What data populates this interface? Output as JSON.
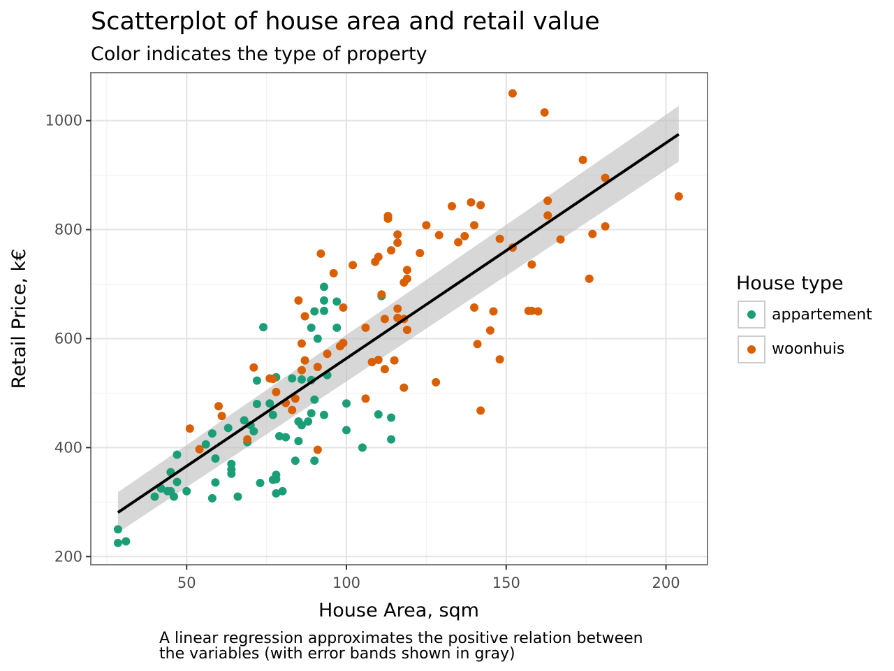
{
  "chart_data": {
    "type": "scatter",
    "title": "Scatterplot of house area and retail value",
    "subtitle": "Color indicates the type of property",
    "xlabel": "House Area, sqm",
    "ylabel": "Retail Price, k€",
    "caption": [
      "A linear regression approximates the positive relation between",
      "the variables (with error bands shown in gray)"
    ],
    "xlim": [
      20,
      213
    ],
    "ylim": [
      185,
      1088
    ],
    "x_ticks": [
      50,
      100,
      150,
      200
    ],
    "y_ticks": [
      200,
      400,
      600,
      800,
      1000
    ],
    "grid": true,
    "legend": {
      "title": "House type",
      "position": "right"
    },
    "colors": {
      "appartement": "#1b9e77",
      "woonhuis": "#d95f02",
      "regression": "#000000",
      "band": "#bebebe"
    },
    "regression": {
      "x": [
        28.5,
        204
      ],
      "y": [
        281,
        975
      ],
      "band_lower": [
        244,
        925
      ],
      "band_upper": [
        318,
        1027
      ]
    },
    "series": [
      {
        "name": "appartement",
        "points": [
          [
            28.5,
            250
          ],
          [
            28.5,
            225
          ],
          [
            31,
            228
          ],
          [
            40,
            310
          ],
          [
            42,
            325
          ],
          [
            44,
            320
          ],
          [
            45,
            320
          ],
          [
            45,
            355
          ],
          [
            46,
            310
          ],
          [
            47,
            387
          ],
          [
            47,
            337
          ],
          [
            50,
            320
          ],
          [
            56,
            406
          ],
          [
            58,
            426
          ],
          [
            58,
            307
          ],
          [
            59,
            380
          ],
          [
            59,
            336
          ],
          [
            63,
            436
          ],
          [
            64,
            370
          ],
          [
            64,
            360
          ],
          [
            64,
            352
          ],
          [
            66,
            310
          ],
          [
            68,
            450
          ],
          [
            69,
            410
          ],
          [
            70,
            441
          ],
          [
            71,
            430
          ],
          [
            72,
            480
          ],
          [
            72,
            523
          ],
          [
            73,
            335
          ],
          [
            74,
            621
          ],
          [
            76,
            481
          ],
          [
            77,
            341
          ],
          [
            77,
            460
          ],
          [
            78,
            529
          ],
          [
            78,
            350
          ],
          [
            78,
            342
          ],
          [
            78,
            316
          ],
          [
            79,
            421
          ],
          [
            80,
            320
          ],
          [
            81,
            419
          ],
          [
            83,
            527
          ],
          [
            84,
            376
          ],
          [
            85,
            412
          ],
          [
            85,
            448
          ],
          [
            86,
            441
          ],
          [
            86,
            525
          ],
          [
            88,
            448
          ],
          [
            89,
            524
          ],
          [
            89,
            620
          ],
          [
            89,
            463
          ],
          [
            90,
            376
          ],
          [
            90,
            488
          ],
          [
            90,
            650
          ],
          [
            91,
            600
          ],
          [
            93,
            460
          ],
          [
            93,
            651
          ],
          [
            93,
            670
          ],
          [
            93,
            695
          ],
          [
            94,
            533
          ],
          [
            97,
            620
          ],
          [
            97,
            668
          ],
          [
            100,
            432
          ],
          [
            100,
            481
          ],
          [
            105,
            400
          ],
          [
            110,
            461
          ],
          [
            111,
            678
          ],
          [
            114,
            455
          ],
          [
            114,
            415
          ]
        ]
      },
      {
        "name": "woonhuis",
        "points": [
          [
            51,
            435
          ],
          [
            54,
            397
          ],
          [
            60,
            476
          ],
          [
            61,
            458
          ],
          [
            69,
            415
          ],
          [
            71,
            547
          ],
          [
            76,
            527
          ],
          [
            77,
            526
          ],
          [
            78,
            502
          ],
          [
            81,
            482
          ],
          [
            83,
            469
          ],
          [
            84,
            490
          ],
          [
            85,
            670
          ],
          [
            86,
            542
          ],
          [
            86,
            591
          ],
          [
            87,
            560
          ],
          [
            87,
            641
          ],
          [
            91,
            396
          ],
          [
            91,
            548
          ],
          [
            92,
            756
          ],
          [
            94,
            572
          ],
          [
            96,
            720
          ],
          [
            98,
            586
          ],
          [
            99,
            592
          ],
          [
            99,
            657
          ],
          [
            102,
            735
          ],
          [
            106,
            620
          ],
          [
            106,
            490
          ],
          [
            108,
            557
          ],
          [
            109,
            741
          ],
          [
            110,
            750
          ],
          [
            110,
            561
          ],
          [
            111,
            681
          ],
          [
            112,
            636
          ],
          [
            112,
            544
          ],
          [
            113,
            825
          ],
          [
            113,
            820
          ],
          [
            114,
            762
          ],
          [
            115,
            560
          ],
          [
            116,
            655
          ],
          [
            116,
            776
          ],
          [
            116,
            791
          ],
          [
            116,
            638
          ],
          [
            118,
            510
          ],
          [
            118,
            703
          ],
          [
            118,
            636
          ],
          [
            119,
            616
          ],
          [
            119,
            710
          ],
          [
            119,
            726
          ],
          [
            123,
            757
          ],
          [
            125,
            808
          ],
          [
            128,
            520
          ],
          [
            129,
            790
          ],
          [
            133,
            843
          ],
          [
            135,
            777
          ],
          [
            137,
            788
          ],
          [
            139,
            850
          ],
          [
            140,
            808
          ],
          [
            140,
            657
          ],
          [
            141,
            590
          ],
          [
            142,
            468
          ],
          [
            142,
            845
          ],
          [
            145,
            615
          ],
          [
            146,
            650
          ],
          [
            148,
            562
          ],
          [
            148,
            783
          ],
          [
            152,
            1050
          ],
          [
            152,
            767
          ],
          [
            157,
            651
          ],
          [
            158,
            651
          ],
          [
            158,
            736
          ],
          [
            160,
            650
          ],
          [
            162,
            1015
          ],
          [
            163,
            853
          ],
          [
            163,
            826
          ],
          [
            167,
            782
          ],
          [
            174,
            928
          ],
          [
            176,
            710
          ],
          [
            177,
            792
          ],
          [
            181,
            895
          ],
          [
            181,
            806
          ],
          [
            204,
            861
          ]
        ]
      }
    ]
  }
}
